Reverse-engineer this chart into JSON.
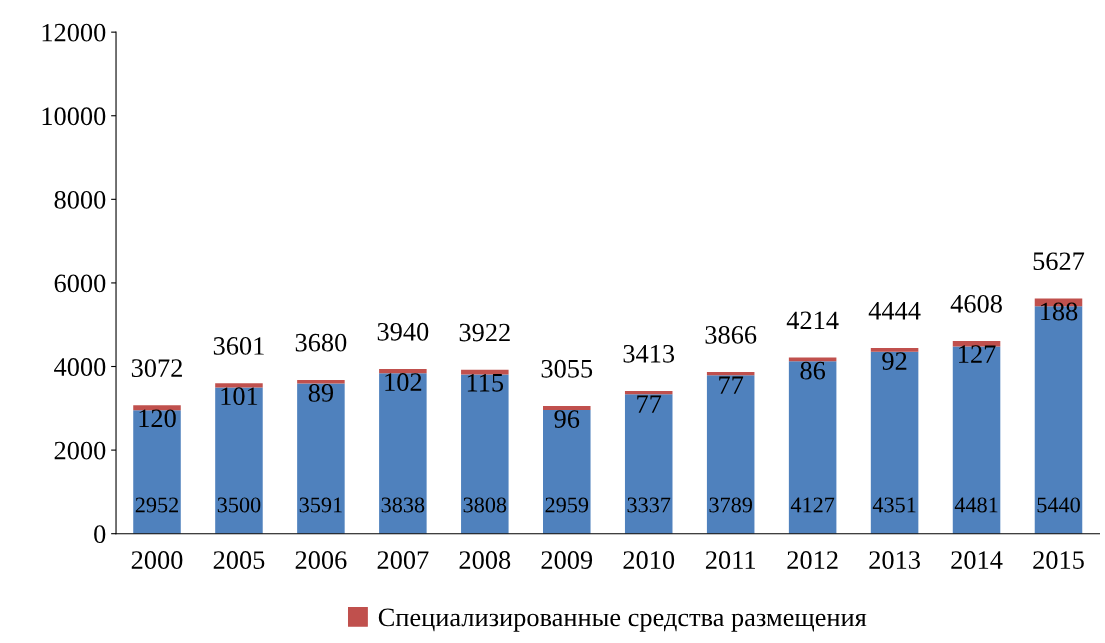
{
  "chart_data": {
    "type": "bar",
    "stacked": true,
    "categories": [
      "2000",
      "2005",
      "2006",
      "2007",
      "2008",
      "2009",
      "2010",
      "2011",
      "2012",
      "2013",
      "2014",
      "2015"
    ],
    "series": [
      {
        "color": "#4f81bd",
        "values": [
          2952,
          3500,
          3591,
          3838,
          3808,
          2959,
          3337,
          3789,
          4127,
          4351,
          4481,
          5440
        ]
      },
      {
        "name": "Специализированные средства размещения",
        "color": "#c0504d",
        "values": [
          120,
          101,
          89,
          102,
          115,
          96,
          77,
          77,
          86,
          92,
          127,
          188
        ]
      }
    ],
    "totals": [
      "3072",
      "3601",
      "3680",
      "3940",
      "3922",
      "3055",
      "3413",
      "3866",
      "4214",
      "4444",
      "4608",
      "5627"
    ],
    "data_labels": true,
    "ylim": [
      0,
      12000
    ],
    "yticks": [
      0,
      2000,
      4000,
      6000,
      8000,
      10000,
      12000
    ],
    "grid": false,
    "legend": "bottom"
  }
}
